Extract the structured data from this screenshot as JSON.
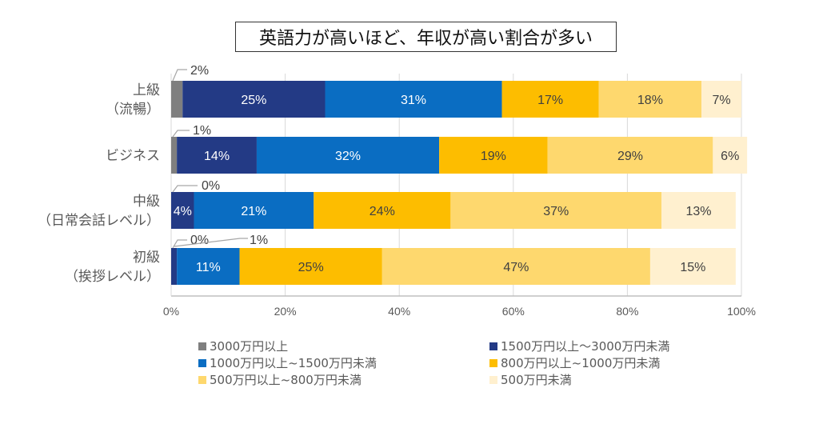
{
  "chart_data": {
    "type": "bar",
    "orientation": "horizontal",
    "stacked": "percent",
    "title": "英語力が高いほど、年収が高い割合が多い",
    "xlabel": "",
    "ylabel": "",
    "xlim": [
      0,
      100
    ],
    "x_ticks": [
      "0%",
      "20%",
      "40%",
      "60%",
      "80%",
      "100%"
    ],
    "grid": true,
    "legend_position": "bottom",
    "categories": [
      [
        "上級",
        "（流暢）"
      ],
      [
        "ビジネス"
      ],
      [
        "中級",
        "（日常会話レベル）"
      ],
      [
        "初級",
        "（挨拶レベル）"
      ]
    ],
    "series": [
      {
        "name": "3000万円以上",
        "color": "#7f7f7f",
        "values": [
          2,
          1,
          0,
          0
        ],
        "label_color": "#404040",
        "label_mode": "callout"
      },
      {
        "name": "1500万円以上〜3000万円未満",
        "color": "#233a85",
        "values": [
          25,
          14,
          4,
          1
        ],
        "label_color": "#ffffff"
      },
      {
        "name": "1000万円以上~1500万円未満",
        "color": "#0a6dc2",
        "values": [
          31,
          32,
          21,
          11
        ],
        "label_color": "#ffffff"
      },
      {
        "name": "800万円以上~1000万円未満",
        "color": "#fdbd00",
        "values": [
          17,
          19,
          24,
          25
        ],
        "label_color": "#404040"
      },
      {
        "name": "500万円以上~800万円未満",
        "color": "#fed86e",
        "values": [
          18,
          29,
          37,
          47
        ],
        "label_color": "#404040"
      },
      {
        "name": "500万円未満",
        "color": "#fff0cf",
        "values": [
          7,
          6,
          13,
          15
        ],
        "label_color": "#404040"
      }
    ],
    "callouts": [
      {
        "row": 0,
        "text": "2%"
      },
      {
        "row": 1,
        "text": "1%"
      },
      {
        "row": 2,
        "text": "0%"
      },
      {
        "row": 3,
        "text": "0%"
      },
      {
        "row": 3,
        "text": "1%"
      }
    ]
  }
}
